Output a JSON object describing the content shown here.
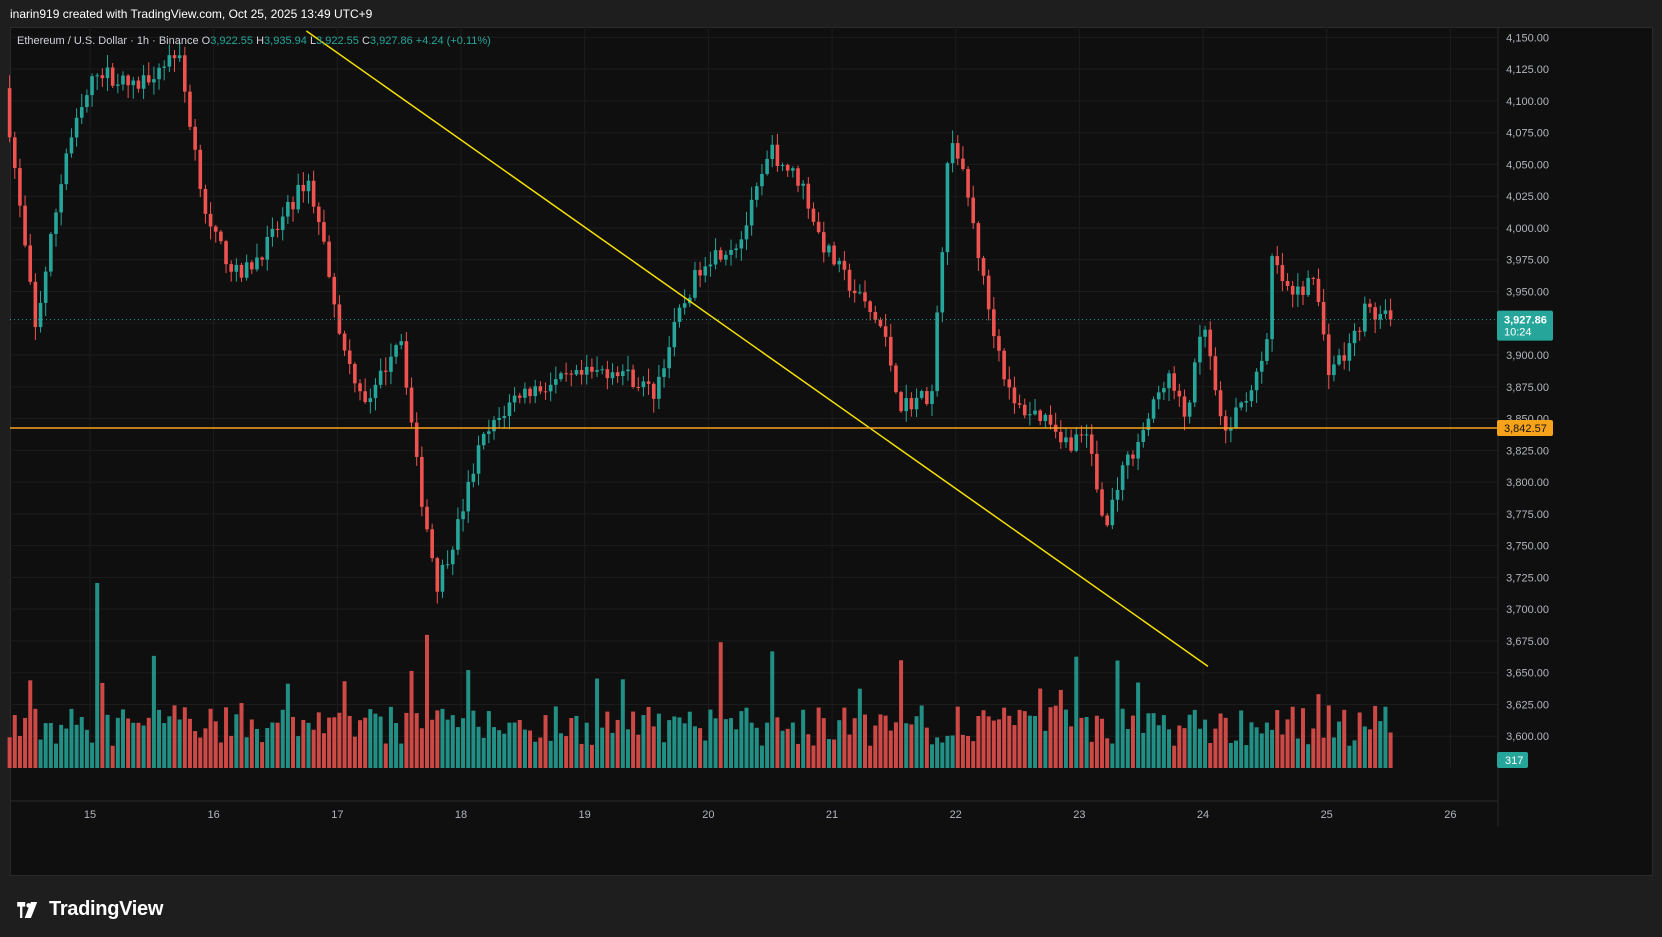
{
  "attribution": "inarin919 created with TradingView.com, Oct 25, 2025 13:49 UTC+9",
  "brand": "TradingView",
  "legend": {
    "symbol": "Ethereum / U.S. Dollar · 1h · Binance",
    "o_label": "O",
    "o_value": "3,922.55",
    "h_label": "H",
    "h_value": "3,935.94",
    "l_label": "L",
    "l_value": "3,922.55",
    "c_label": "C",
    "c_value": "3,927.86",
    "change": "+4.24 (+0.11%)"
  },
  "colors": {
    "up": "#26a69a",
    "down": "#ef5350",
    "trendline": "#f5e000",
    "level": "#f7a21b",
    "background": "#0f0f0f"
  },
  "chart_data": {
    "type": "candlestick",
    "y_ticks": [
      "4,150.00",
      "4,125.00",
      "4,100.00",
      "4,075.00",
      "4,050.00",
      "4,025.00",
      "4,000.00",
      "3,975.00",
      "3,950.00",
      "3,925.00",
      "3,900.00",
      "3,875.00",
      "3,850.00",
      "3,825.00",
      "3,800.00",
      "3,775.00",
      "3,750.00",
      "3,725.00",
      "3,700.00",
      "3,675.00",
      "3,650.00",
      "3,625.00",
      "3,600.00"
    ],
    "x_ticks": [
      "15",
      "16",
      "17",
      "18",
      "19",
      "20",
      "21",
      "22",
      "23",
      "24",
      "25",
      "26"
    ],
    "ylim": [
      3575,
      4155
    ],
    "last_price": "3,927.86",
    "countdown": "10:24",
    "level_price": "3,842.57",
    "volume_label": "317",
    "series_anchors": [
      {
        "day": 14.35,
        "price": 4110
      },
      {
        "day": 14.6,
        "price": 3920
      },
      {
        "day": 14.85,
        "price": 4060
      },
      {
        "day": 15.1,
        "price": 4125
      },
      {
        "day": 15.4,
        "price": 4110
      },
      {
        "day": 15.75,
        "price": 4140
      },
      {
        "day": 16.0,
        "price": 4000
      },
      {
        "day": 16.25,
        "price": 3960
      },
      {
        "day": 16.5,
        "price": 3990
      },
      {
        "day": 16.8,
        "price": 4040
      },
      {
        "day": 16.95,
        "price": 3980
      },
      {
        "day": 17.1,
        "price": 3900
      },
      {
        "day": 17.3,
        "price": 3860
      },
      {
        "day": 17.55,
        "price": 3920
      },
      {
        "day": 17.7,
        "price": 3800
      },
      {
        "day": 17.85,
        "price": 3720
      },
      {
        "day": 18.0,
        "price": 3760
      },
      {
        "day": 18.2,
        "price": 3830
      },
      {
        "day": 18.5,
        "price": 3870
      },
      {
        "day": 18.9,
        "price": 3880
      },
      {
        "day": 19.3,
        "price": 3890
      },
      {
        "day": 19.6,
        "price": 3870
      },
      {
        "day": 19.8,
        "price": 3930
      },
      {
        "day": 20.0,
        "price": 3975
      },
      {
        "day": 20.3,
        "price": 3990
      },
      {
        "day": 20.55,
        "price": 4060
      },
      {
        "day": 20.8,
        "price": 4035
      },
      {
        "day": 20.95,
        "price": 3990
      },
      {
        "day": 21.15,
        "price": 3960
      },
      {
        "day": 21.45,
        "price": 3920
      },
      {
        "day": 21.6,
        "price": 3860
      },
      {
        "day": 21.85,
        "price": 3870
      },
      {
        "day": 22.0,
        "price": 4080
      },
      {
        "day": 22.15,
        "price": 4020
      },
      {
        "day": 22.3,
        "price": 3940
      },
      {
        "day": 22.5,
        "price": 3860
      },
      {
        "day": 22.8,
        "price": 3850
      },
      {
        "day": 22.95,
        "price": 3830
      },
      {
        "day": 23.1,
        "price": 3840
      },
      {
        "day": 23.25,
        "price": 3760
      },
      {
        "day": 23.35,
        "price": 3800
      },
      {
        "day": 23.6,
        "price": 3850
      },
      {
        "day": 23.75,
        "price": 3885
      },
      {
        "day": 23.9,
        "price": 3850
      },
      {
        "day": 24.05,
        "price": 3925
      },
      {
        "day": 24.2,
        "price": 3835
      },
      {
        "day": 24.4,
        "price": 3870
      },
      {
        "day": 24.55,
        "price": 3895
      },
      {
        "day": 24.6,
        "price": 3975
      },
      {
        "day": 24.75,
        "price": 3945
      },
      {
        "day": 24.95,
        "price": 3960
      },
      {
        "day": 25.05,
        "price": 3890
      },
      {
        "day": 25.2,
        "price": 3900
      },
      {
        "day": 25.35,
        "price": 3935
      },
      {
        "day": 25.55,
        "price": 3928
      }
    ],
    "trendline": [
      {
        "day": 16.75,
        "price": 4155
      },
      {
        "day": 24.04,
        "price": 3655
      }
    ],
    "volume_spikes": [
      {
        "day": 15.05,
        "value": 1
      },
      {
        "day": 17.72,
        "value": 0.72
      },
      {
        "day": 20.08,
        "value": 0.68
      }
    ]
  }
}
